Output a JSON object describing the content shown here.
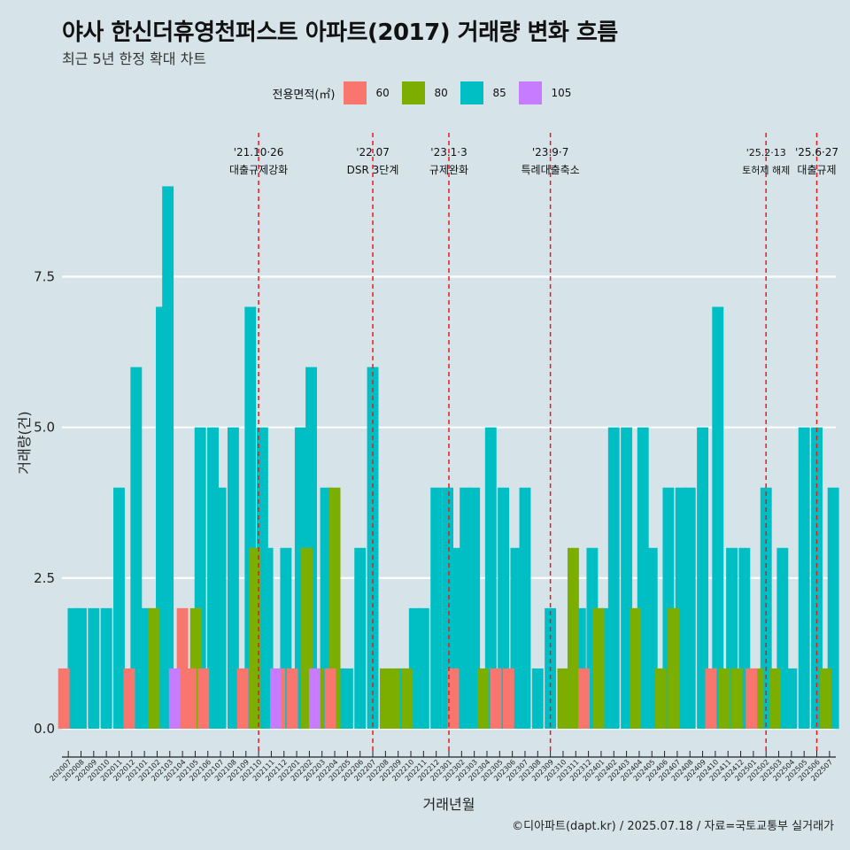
{
  "title": "야사 한신더휴영천퍼스트 아파트(2017) 거래량 변화 흐름",
  "subtitle": "최근 5년 한정 확대 차트",
  "caption": "©디아파트(dapt.kr) / 2025.07.18 / 자료=국토교통부 실거래가",
  "colors": {
    "background": "#d6e4ea",
    "gridline": "#ffffff",
    "vline": "#e8191d"
  },
  "legend": {
    "title": "전용면적(㎡)",
    "items": [
      {
        "label": "60",
        "color": "#f8766d"
      },
      {
        "label": "80",
        "color": "#7cae00"
      },
      {
        "label": "85",
        "color": "#00bfc4"
      },
      {
        "label": "105",
        "color": "#c77cff"
      }
    ]
  },
  "chart_data": {
    "type": "bar",
    "stacking": "overlap (bars drawn from zero, behind one another)",
    "xlabel": "거래년월",
    "ylabel": "거래량(건)",
    "ylim": [
      -0.5,
      9.0
    ],
    "yticks": [
      0.0,
      2.5,
      5.0,
      7.5
    ],
    "ytick_labels": [
      "0.0",
      "2.5",
      "5.0",
      "7.5"
    ],
    "grid": "horizontal major gridlines",
    "x": [
      "202007",
      "202008",
      "202009",
      "202010",
      "202011",
      "202012",
      "202101",
      "202102",
      "202103",
      "202104",
      "202105",
      "202106",
      "202107",
      "202108",
      "202109",
      "202110",
      "202111",
      "202112",
      "202201",
      "202202",
      "202203",
      "202204",
      "202205",
      "202206",
      "202207",
      "202208",
      "202209",
      "202210",
      "202211",
      "202212",
      "202301",
      "202302",
      "202303",
      "202304",
      "202305",
      "202306",
      "202307",
      "202308",
      "202309",
      "202310",
      "202311",
      "202312",
      "202401",
      "202402",
      "202403",
      "202404",
      "202405",
      "202406",
      "202407",
      "202408",
      "202409",
      "202410",
      "202411",
      "202412",
      "202501",
      "202502",
      "202503",
      "202504",
      "202505",
      "202506",
      "202507"
    ],
    "bars": [
      {
        "ym": "202007",
        "size": "60",
        "offset": -0.35,
        "value": 1
      },
      {
        "ym": "202007",
        "size": "85",
        "offset": 0.4,
        "value": 2
      },
      {
        "ym": "202008",
        "size": "85",
        "offset": 0,
        "value": 2
      },
      {
        "ym": "202009",
        "size": "85",
        "offset": 0,
        "value": 2
      },
      {
        "ym": "202010",
        "size": "85",
        "offset": 0,
        "value": 2
      },
      {
        "ym": "202011",
        "size": "85",
        "offset": 0,
        "value": 4
      },
      {
        "ym": "202012",
        "size": "60",
        "offset": -0.2,
        "value": 1
      },
      {
        "ym": "202012",
        "size": "85",
        "offset": 0.35,
        "value": 6
      },
      {
        "ym": "202101",
        "size": "85",
        "offset": 0,
        "value": 2
      },
      {
        "ym": "202102",
        "size": "80",
        "offset": -0.25,
        "value": 2
      },
      {
        "ym": "202102",
        "size": "85",
        "offset": 0.35,
        "value": 7
      },
      {
        "ym": "202103",
        "size": "85",
        "offset": -0.15,
        "value": 9
      },
      {
        "ym": "202103",
        "size": "105",
        "offset": 0.38,
        "value": 1
      },
      {
        "ym": "202104",
        "size": "60",
        "offset": 0,
        "value": 2
      },
      {
        "ym": "202105",
        "size": "60",
        "offset": -0.35,
        "value": 1
      },
      {
        "ym": "202105",
        "size": "80",
        "offset": 0.05,
        "value": 2
      },
      {
        "ym": "202105",
        "size": "85",
        "offset": 0.4,
        "value": 5
      },
      {
        "ym": "202106",
        "size": "60",
        "offset": -0.35,
        "value": 1
      },
      {
        "ym": "202106",
        "size": "85",
        "offset": 0.4,
        "value": 5
      },
      {
        "ym": "202107",
        "size": "85",
        "offset": 0,
        "value": 4
      },
      {
        "ym": "202108",
        "size": "85",
        "offset": 0,
        "value": 5
      },
      {
        "ym": "202109",
        "size": "60",
        "offset": -0.25,
        "value": 1
      },
      {
        "ym": "202109",
        "size": "85",
        "offset": 0.35,
        "value": 7
      },
      {
        "ym": "202110",
        "size": "80",
        "offset": -0.3,
        "value": 3
      },
      {
        "ym": "202110",
        "size": "85",
        "offset": 0.3,
        "value": 5
      },
      {
        "ym": "202111",
        "size": "85",
        "offset": -0.3,
        "value": 3
      },
      {
        "ym": "202111",
        "size": "105",
        "offset": 0.35,
        "value": 1
      },
      {
        "ym": "202112",
        "size": "60",
        "offset": -0.35,
        "value": 1
      },
      {
        "ym": "202112",
        "size": "85",
        "offset": 0.15,
        "value": 3
      },
      {
        "ym": "202201",
        "size": "60",
        "offset": -0.35,
        "value": 1
      },
      {
        "ym": "202201",
        "size": "85",
        "offset": 0.3,
        "value": 5
      },
      {
        "ym": "202202",
        "size": "80",
        "offset": -0.2,
        "value": 3
      },
      {
        "ym": "202202",
        "size": "85",
        "offset": 0.15,
        "value": 6
      },
      {
        "ym": "202202",
        "size": "105",
        "offset": 0.42,
        "value": 1
      },
      {
        "ym": "202203",
        "size": "80",
        "offset": -0.3,
        "value": 1
      },
      {
        "ym": "202203",
        "size": "85",
        "offset": 0.3,
        "value": 4
      },
      {
        "ym": "202204",
        "size": "60",
        "offset": -0.35,
        "value": 1
      },
      {
        "ym": "202204",
        "size": "80",
        "offset": 0.0,
        "value": 4
      },
      {
        "ym": "202204",
        "size": "85",
        "offset": 0.4,
        "value": 1
      },
      {
        "ym": "202205",
        "size": "85",
        "offset": 0,
        "value": 1
      },
      {
        "ym": "202206",
        "size": "85",
        "offset": 0,
        "value": 3
      },
      {
        "ym": "202207",
        "size": "85",
        "offset": 0,
        "value": 6
      },
      {
        "ym": "202208",
        "size": "80",
        "offset": 0,
        "value": 1
      },
      {
        "ym": "202209",
        "size": "80",
        "offset": -0.3,
        "value": 1
      },
      {
        "ym": "202209",
        "size": "85",
        "offset": 0.25,
        "value": 1
      },
      {
        "ym": "202210",
        "size": "80",
        "offset": -0.3,
        "value": 1
      },
      {
        "ym": "202210",
        "size": "85",
        "offset": 0.3,
        "value": 2
      },
      {
        "ym": "202211",
        "size": "85",
        "offset": 0,
        "value": 2
      },
      {
        "ym": "202212",
        "size": "85",
        "offset": 0,
        "value": 4
      },
      {
        "ym": "202301",
        "size": "60",
        "offset": 0.35,
        "value": 1
      },
      {
        "ym": "202301",
        "size": "85",
        "offset": -0.1,
        "value": 4
      },
      {
        "ym": "202302",
        "size": "85",
        "offset": -0.3,
        "value": 3
      },
      {
        "ym": "202302",
        "size": "85",
        "offset": 0.3,
        "value": 4
      },
      {
        "ym": "202303",
        "size": "85",
        "offset": 0,
        "value": 4
      },
      {
        "ym": "202304",
        "size": "80",
        "offset": -0.3,
        "value": 1
      },
      {
        "ym": "202304",
        "size": "85",
        "offset": 0.3,
        "value": 5
      },
      {
        "ym": "202305",
        "size": "60",
        "offset": -0.3,
        "value": 1
      },
      {
        "ym": "202305",
        "size": "85",
        "offset": 0.3,
        "value": 4
      },
      {
        "ym": "202306",
        "size": "60",
        "offset": -0.3,
        "value": 1
      },
      {
        "ym": "202306",
        "size": "85",
        "offset": 0.3,
        "value": 3
      },
      {
        "ym": "202307",
        "size": "85",
        "offset": 0,
        "value": 4
      },
      {
        "ym": "202308",
        "size": "85",
        "offset": 0,
        "value": 1
      },
      {
        "ym": "202309",
        "size": "85",
        "offset": 0,
        "value": 2
      },
      {
        "ym": "202310",
        "size": "80",
        "offset": 0,
        "value": 1
      },
      {
        "ym": "202311",
        "size": "80",
        "offset": -0.2,
        "value": 3
      },
      {
        "ym": "202311",
        "size": "85",
        "offset": 0.35,
        "value": 2
      },
      {
        "ym": "202312",
        "size": "60",
        "offset": -0.35,
        "value": 1
      },
      {
        "ym": "202312",
        "size": "85",
        "offset": 0.3,
        "value": 3
      },
      {
        "ym": "202401",
        "size": "80",
        "offset": -0.2,
        "value": 2
      },
      {
        "ym": "202401",
        "size": "85",
        "offset": 0.35,
        "value": 2
      },
      {
        "ym": "202402",
        "size": "85",
        "offset": 0,
        "value": 5
      },
      {
        "ym": "202403",
        "size": "85",
        "offset": 0,
        "value": 5
      },
      {
        "ym": "202404",
        "size": "80",
        "offset": -0.3,
        "value": 2
      },
      {
        "ym": "202404",
        "size": "85",
        "offset": 0.3,
        "value": 5
      },
      {
        "ym": "202405",
        "size": "85",
        "offset": 0,
        "value": 3
      },
      {
        "ym": "202406",
        "size": "80",
        "offset": -0.3,
        "value": 1
      },
      {
        "ym": "202406",
        "size": "85",
        "offset": 0.3,
        "value": 4
      },
      {
        "ym": "202407",
        "size": "80",
        "offset": -0.3,
        "value": 2
      },
      {
        "ym": "202407",
        "size": "85",
        "offset": 0.3,
        "value": 4
      },
      {
        "ym": "202408",
        "size": "85",
        "offset": 0,
        "value": 4
      },
      {
        "ym": "202409",
        "size": "85",
        "offset": 0,
        "value": 5
      },
      {
        "ym": "202410",
        "size": "60",
        "offset": -0.35,
        "value": 1
      },
      {
        "ym": "202410",
        "size": "85",
        "offset": 0.2,
        "value": 7
      },
      {
        "ym": "202411",
        "size": "80",
        "offset": -0.3,
        "value": 1
      },
      {
        "ym": "202411",
        "size": "85",
        "offset": 0.3,
        "value": 3
      },
      {
        "ym": "202412",
        "size": "80",
        "offset": -0.3,
        "value": 1
      },
      {
        "ym": "202412",
        "size": "85",
        "offset": 0.3,
        "value": 3
      },
      {
        "ym": "202501",
        "size": "60",
        "offset": -0.15,
        "value": 1
      },
      {
        "ym": "202501",
        "size": "80",
        "offset": 0.35,
        "value": 1
      },
      {
        "ym": "202502",
        "size": "85",
        "offset": 0,
        "value": 4
      },
      {
        "ym": "202503",
        "size": "80",
        "offset": -0.3,
        "value": 1
      },
      {
        "ym": "202503",
        "size": "85",
        "offset": 0.3,
        "value": 3
      },
      {
        "ym": "202504",
        "size": "85",
        "offset": 0,
        "value": 1
      },
      {
        "ym": "202505",
        "size": "85",
        "offset": 0,
        "value": 5
      },
      {
        "ym": "202506",
        "size": "85",
        "offset": 0,
        "value": 5
      },
      {
        "ym": "202507",
        "size": "80",
        "offset": -0.3,
        "value": 1
      },
      {
        "ym": "202507",
        "size": "85",
        "offset": 0.3,
        "value": 4
      }
    ],
    "annotations": [
      {
        "at": 15.0,
        "date": "'21.10·26",
        "event": "대출규제강화",
        "small": false
      },
      {
        "at": 24.0,
        "date": "'22.07",
        "event": "DSR 3단계",
        "small": false
      },
      {
        "at": 30.0,
        "date": "'23.1·3",
        "event": "규제완화",
        "small": false
      },
      {
        "at": 38.0,
        "date": "'23.9·7",
        "event": "특례대출축소",
        "small": false
      },
      {
        "at": 55.0,
        "date": "'25.2·13",
        "event": "토허제 해제",
        "small": true
      },
      {
        "at": 59.0,
        "date": "'25.6·27",
        "event": "대출규제",
        "small": false
      }
    ]
  }
}
